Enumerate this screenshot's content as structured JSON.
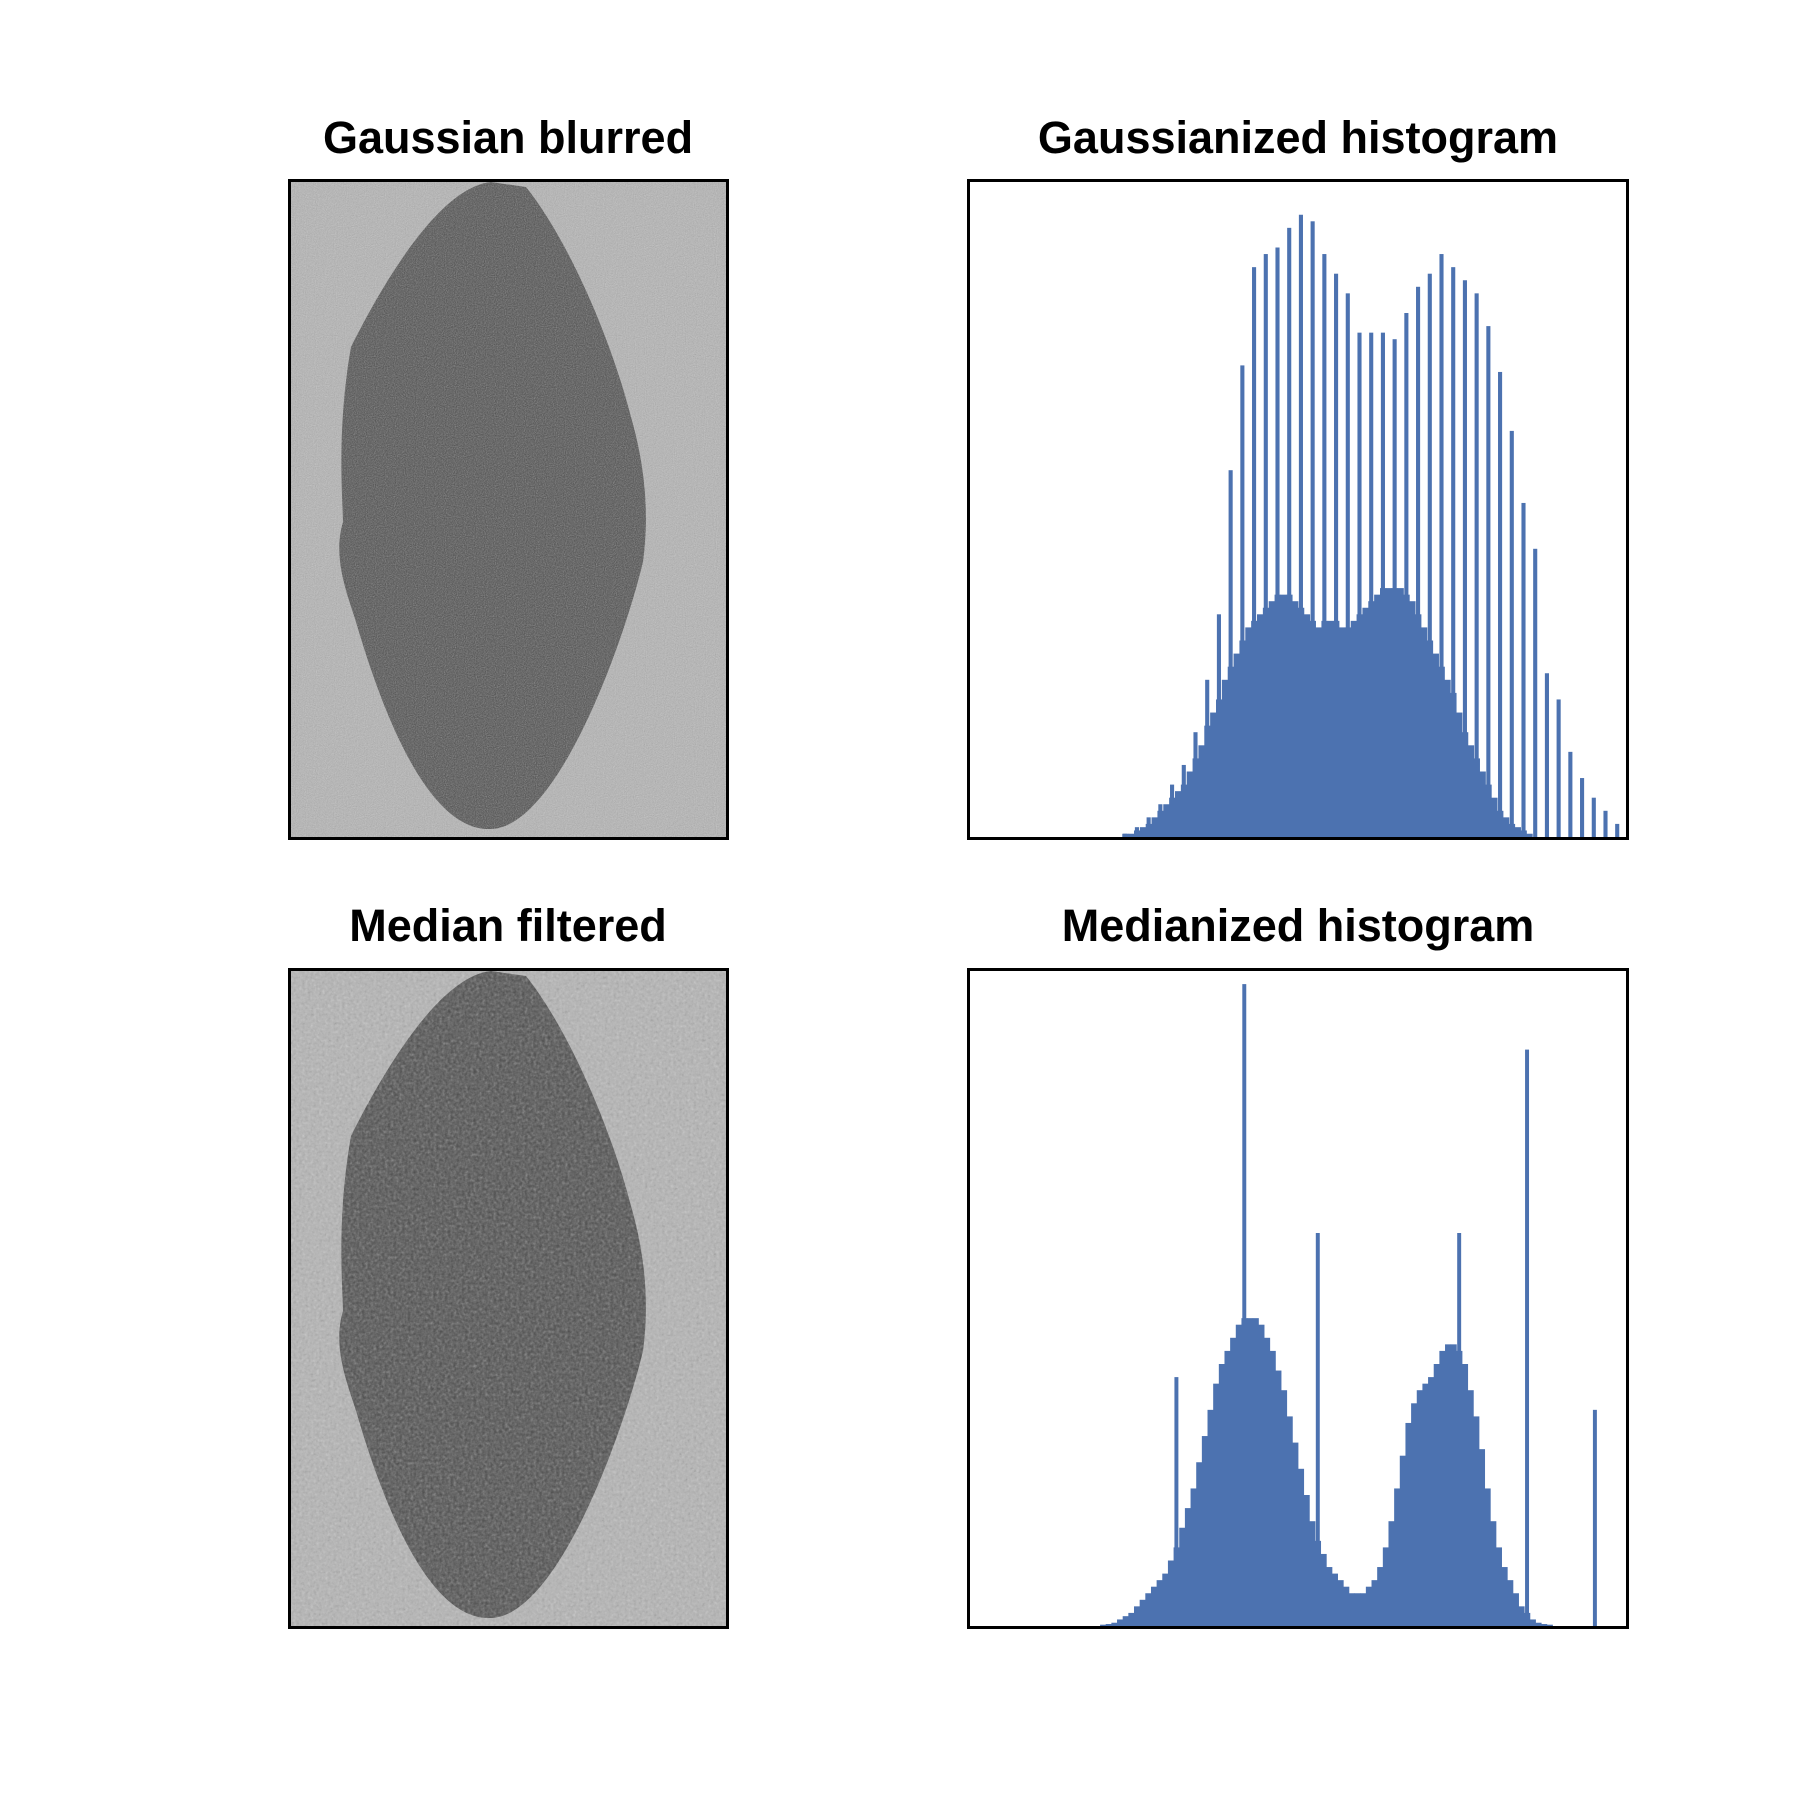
{
  "panels": {
    "gaussian_image_title": "Gaussian blurred",
    "gaussian_hist_title": "Gaussianized histogram",
    "median_image_title": "Median filtered",
    "median_hist_title": "Medianized histogram"
  },
  "colors": {
    "bar": "#4c72b0",
    "frame": "#000000",
    "image_background": "#b4b4b4",
    "image_blob": "#4c4c4c"
  },
  "images": [
    {
      "name": "gaussian-blurred-image",
      "type": "image",
      "description_shape": "ellipse-blob",
      "texture": "fine-noise"
    },
    {
      "name": "median-filtered-image",
      "type": "image",
      "description_shape": "ellipse-blob",
      "texture": "coarse-noise"
    }
  ],
  "chart_data": [
    {
      "type": "bar",
      "title": "Gaussianized histogram",
      "xlabel": "",
      "ylabel": "",
      "axes_ticks": false,
      "ylim": [
        0,
        100
      ],
      "values": [
        0,
        0,
        0,
        0,
        0,
        0,
        0,
        0,
        0,
        0,
        0,
        0,
        0,
        0,
        0,
        0,
        0,
        0,
        0,
        0,
        0,
        0,
        0,
        0,
        0,
        0,
        0.5,
        0.5,
        1,
        1.5,
        2,
        3,
        4,
        5,
        6,
        7,
        8,
        10,
        12,
        14,
        17,
        19,
        21,
        24,
        26,
        28,
        30,
        32,
        33,
        34,
        35,
        36,
        37,
        37,
        37,
        36,
        35,
        34,
        33,
        32,
        33,
        33,
        33,
        32,
        32,
        33,
        34,
        35,
        36,
        37,
        38,
        38,
        38,
        38,
        37,
        36,
        34,
        32,
        30,
        28,
        26,
        24,
        22,
        19,
        16,
        14,
        12,
        10,
        8,
        6,
        4,
        3,
        2,
        1.5,
        1,
        0.5,
        0,
        0,
        0,
        0,
        0,
        0,
        0,
        0,
        0,
        0,
        0,
        0,
        0,
        0,
        0,
        0
      ],
      "spikes": [
        {
          "index": 26,
          "value": 0.5
        },
        {
          "index": 28,
          "value": 1.5
        },
        {
          "index": 30,
          "value": 3
        },
        {
          "index": 32,
          "value": 5
        },
        {
          "index": 34,
          "value": 8
        },
        {
          "index": 36,
          "value": 11
        },
        {
          "index": 38,
          "value": 16
        },
        {
          "index": 40,
          "value": 24
        },
        {
          "index": 42,
          "value": 34
        },
        {
          "index": 44,
          "value": 56
        },
        {
          "index": 46,
          "value": 72
        },
        {
          "index": 48,
          "value": 87
        },
        {
          "index": 50,
          "value": 89
        },
        {
          "index": 52,
          "value": 90
        },
        {
          "index": 54,
          "value": 93
        },
        {
          "index": 56,
          "value": 95
        },
        {
          "index": 58,
          "value": 94
        },
        {
          "index": 60,
          "value": 89
        },
        {
          "index": 62,
          "value": 86
        },
        {
          "index": 64,
          "value": 83
        },
        {
          "index": 66,
          "value": 77
        },
        {
          "index": 68,
          "value": 77
        },
        {
          "index": 70,
          "value": 77
        },
        {
          "index": 72,
          "value": 76
        },
        {
          "index": 74,
          "value": 80
        },
        {
          "index": 76,
          "value": 84
        },
        {
          "index": 78,
          "value": 86
        },
        {
          "index": 80,
          "value": 89
        },
        {
          "index": 82,
          "value": 87
        },
        {
          "index": 84,
          "value": 85
        },
        {
          "index": 86,
          "value": 83
        },
        {
          "index": 88,
          "value": 78
        },
        {
          "index": 90,
          "value": 71
        },
        {
          "index": 92,
          "value": 62
        },
        {
          "index": 94,
          "value": 51
        },
        {
          "index": 96,
          "value": 44
        },
        {
          "index": 98,
          "value": 25
        },
        {
          "index": 100,
          "value": 21
        },
        {
          "index": 102,
          "value": 13
        },
        {
          "index": 104,
          "value": 9
        },
        {
          "index": 106,
          "value": 6
        },
        {
          "index": 108,
          "value": 4
        },
        {
          "index": 110,
          "value": 2
        },
        {
          "index": 112,
          "value": 1
        },
        {
          "index": 114,
          "value": 0.5
        }
      ]
    },
    {
      "type": "bar",
      "title": "Medianized histogram",
      "xlabel": "",
      "ylabel": "",
      "axes_ticks": false,
      "ylim": [
        0,
        100
      ],
      "values": [
        0,
        0,
        0,
        0,
        0,
        0,
        0,
        0,
        0,
        0,
        0,
        0,
        0,
        0,
        0,
        0,
        0,
        0,
        0,
        0,
        0,
        0,
        0,
        0.2,
        0.3,
        0.5,
        1,
        1.5,
        2,
        3,
        4,
        5,
        6,
        7,
        8,
        10,
        12,
        15,
        18,
        21,
        25,
        29,
        33,
        37,
        40,
        42,
        44,
        46,
        47,
        47,
        47,
        46,
        44,
        42,
        39,
        36,
        32,
        28,
        24,
        20,
        16,
        13,
        11,
        9,
        8,
        7,
        6,
        5,
        5,
        5,
        6,
        7,
        9,
        12,
        16,
        21,
        26,
        31,
        34,
        36,
        37,
        38,
        40,
        42,
        43,
        43,
        42,
        40,
        36,
        32,
        27,
        21,
        16,
        12,
        9,
        7,
        5,
        3,
        2,
        1,
        0.5,
        0.3,
        0.2,
        0,
        0,
        0,
        0,
        0,
        0,
        0,
        0,
        0,
        0,
        0,
        0,
        0
      ],
      "spikes": [
        {
          "index": 36,
          "value": 38
        },
        {
          "index": 48,
          "value": 98
        },
        {
          "index": 61,
          "value": 60
        },
        {
          "index": 74,
          "value": 11
        },
        {
          "index": 86,
          "value": 60
        },
        {
          "index": 98,
          "value": 88
        },
        {
          "index": 110,
          "value": 33
        }
      ]
    }
  ]
}
